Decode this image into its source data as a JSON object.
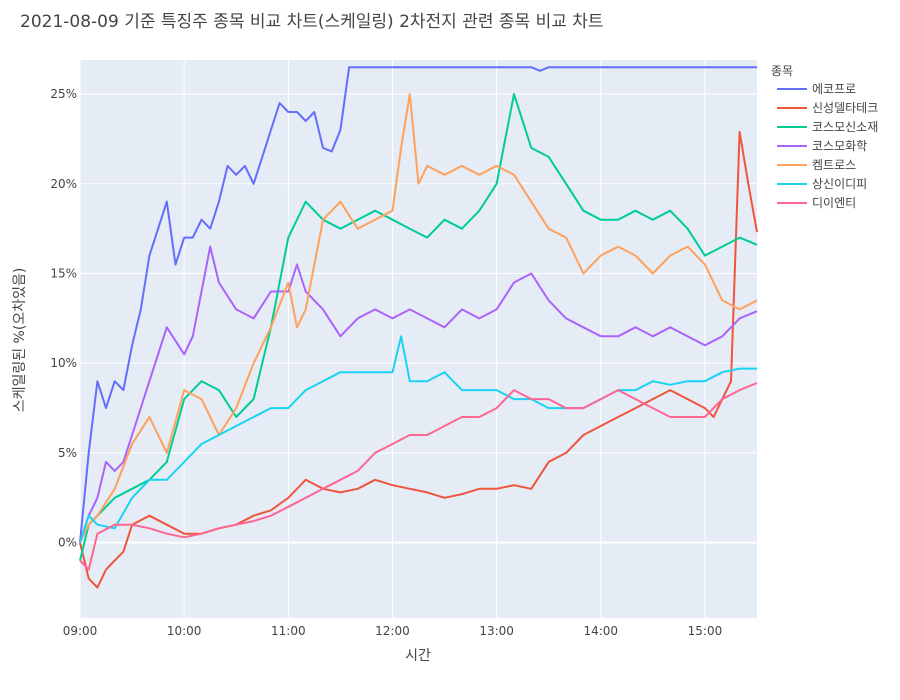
{
  "chart_data": {
    "type": "line",
    "title": "2021-08-09 기준 특징주 종목 비교 차트(스케일링) 2차전지 관련 종목 비교 차트",
    "xlabel": "시간",
    "ylabel": "스케일링된 %(오차있음)",
    "legend_title": "종목",
    "legend_position": "right",
    "grid": true,
    "xlim": [
      "09:00",
      "15:30"
    ],
    "ylim": [
      -4.2,
      26.9
    ],
    "x_ticks": [
      "09:00",
      "10:00",
      "11:00",
      "12:00",
      "13:00",
      "14:00",
      "15:00"
    ],
    "y_ticks": [
      0,
      5,
      10,
      15,
      20,
      25
    ],
    "y_tick_labels": [
      "0%",
      "5%",
      "10%",
      "15%",
      "20%",
      "25%"
    ],
    "series": [
      {
        "name": "에코프로",
        "color": "#636efa",
        "x": [
          "09:00",
          "09:05",
          "09:10",
          "09:15",
          "09:20",
          "09:25",
          "09:30",
          "09:35",
          "09:40",
          "09:45",
          "09:50",
          "09:55",
          "10:00",
          "10:05",
          "10:10",
          "10:15",
          "10:20",
          "10:25",
          "10:30",
          "10:35",
          "10:40",
          "10:45",
          "10:50",
          "10:55",
          "11:00",
          "11:05",
          "11:10",
          "11:15",
          "11:20",
          "11:25",
          "11:30",
          "11:35",
          "12:00",
          "13:00",
          "13:20",
          "13:25",
          "13:30",
          "14:00",
          "15:00",
          "15:30"
        ],
        "values": [
          0.0,
          5.0,
          9.0,
          7.5,
          9.0,
          8.5,
          11.0,
          13.0,
          16.0,
          17.5,
          19.0,
          15.5,
          17.0,
          17.0,
          18.0,
          17.5,
          19.0,
          21.0,
          20.5,
          21.0,
          20.0,
          21.5,
          23.0,
          24.5,
          24.0,
          24.0,
          23.5,
          24.0,
          22.0,
          21.8,
          23.0,
          26.5,
          26.5,
          26.5,
          26.5,
          26.3,
          26.5,
          26.5,
          26.5,
          26.5
        ]
      },
      {
        "name": "신성델타테크",
        "color": "#ef553b",
        "x": [
          "09:00",
          "09:05",
          "09:10",
          "09:15",
          "09:20",
          "09:25",
          "09:30",
          "09:40",
          "09:50",
          "10:00",
          "10:10",
          "10:20",
          "10:30",
          "10:40",
          "10:50",
          "11:00",
          "11:10",
          "11:20",
          "11:30",
          "11:40",
          "11:50",
          "12:00",
          "12:10",
          "12:20",
          "12:30",
          "12:40",
          "12:50",
          "13:00",
          "13:10",
          "13:20",
          "13:30",
          "13:40",
          "13:50",
          "14:00",
          "14:10",
          "14:20",
          "14:30",
          "14:40",
          "14:50",
          "15:00",
          "15:05",
          "15:10",
          "15:15",
          "15:20",
          "15:25",
          "15:30"
        ],
        "values": [
          0.0,
          -2.0,
          -2.5,
          -1.5,
          -1.0,
          -0.5,
          1.0,
          1.5,
          1.0,
          0.5,
          0.5,
          0.8,
          1.0,
          1.5,
          1.8,
          2.5,
          3.5,
          3.0,
          2.8,
          3.0,
          3.5,
          3.2,
          3.0,
          2.8,
          2.5,
          2.7,
          3.0,
          3.0,
          3.2,
          3.0,
          4.5,
          5.0,
          6.0,
          6.5,
          7.0,
          7.5,
          8.0,
          8.5,
          8.0,
          7.5,
          7.0,
          8.0,
          9.0,
          22.9,
          20.0,
          17.3
        ]
      },
      {
        "name": "코스모신소재",
        "color": "#00cc96",
        "x": [
          "09:00",
          "09:05",
          "09:10",
          "09:20",
          "09:30",
          "09:40",
          "09:50",
          "10:00",
          "10:10",
          "10:20",
          "10:30",
          "10:40",
          "10:50",
          "11:00",
          "11:10",
          "11:20",
          "11:30",
          "11:40",
          "11:50",
          "12:00",
          "12:10",
          "12:20",
          "12:30",
          "12:40",
          "12:50",
          "13:00",
          "13:10",
          "13:20",
          "13:30",
          "13:40",
          "13:50",
          "14:00",
          "14:10",
          "14:20",
          "14:30",
          "14:40",
          "14:50",
          "15:00",
          "15:10",
          "15:20",
          "15:30"
        ],
        "values": [
          -1.0,
          1.0,
          1.5,
          2.5,
          3.0,
          3.5,
          4.5,
          8.0,
          9.0,
          8.5,
          7.0,
          8.0,
          12.0,
          17.0,
          19.0,
          18.0,
          17.5,
          18.0,
          18.5,
          18.0,
          17.5,
          17.0,
          18.0,
          17.5,
          18.5,
          20.0,
          25.0,
          22.0,
          21.5,
          20.0,
          18.5,
          18.0,
          18.0,
          18.5,
          18.0,
          18.5,
          17.5,
          16.0,
          16.5,
          17.0,
          16.6
        ]
      },
      {
        "name": "코스모화학",
        "color": "#ab63fa",
        "x": [
          "09:00",
          "09:05",
          "09:10",
          "09:15",
          "09:20",
          "09:25",
          "09:30",
          "09:40",
          "09:50",
          "10:00",
          "10:05",
          "10:10",
          "10:15",
          "10:20",
          "10:30",
          "10:40",
          "10:50",
          "11:00",
          "11:05",
          "11:10",
          "11:20",
          "11:30",
          "11:40",
          "11:50",
          "12:00",
          "12:10",
          "12:20",
          "12:30",
          "12:40",
          "12:50",
          "13:00",
          "13:10",
          "13:20",
          "13:30",
          "13:40",
          "13:50",
          "14:00",
          "14:10",
          "14:20",
          "14:30",
          "14:40",
          "14:50",
          "15:00",
          "15:10",
          "15:20",
          "15:30"
        ],
        "values": [
          0.0,
          1.5,
          2.5,
          4.5,
          4.0,
          4.5,
          6.0,
          9.0,
          12.0,
          10.5,
          11.5,
          14.0,
          16.5,
          14.5,
          13.0,
          12.5,
          14.0,
          14.0,
          15.5,
          14.0,
          13.0,
          11.5,
          12.5,
          13.0,
          12.5,
          13.0,
          12.5,
          12.0,
          13.0,
          12.5,
          13.0,
          14.5,
          15.0,
          13.5,
          12.5,
          12.0,
          11.5,
          11.5,
          12.0,
          11.5,
          12.0,
          11.5,
          11.0,
          11.5,
          12.5,
          12.9
        ]
      },
      {
        "name": "켐트로스",
        "color": "#ffa15a",
        "x": [
          "09:00",
          "09:05",
          "09:10",
          "09:20",
          "09:30",
          "09:40",
          "09:50",
          "10:00",
          "10:10",
          "10:20",
          "10:30",
          "10:40",
          "10:50",
          "11:00",
          "11:05",
          "11:10",
          "11:20",
          "11:30",
          "11:40",
          "11:50",
          "12:00",
          "12:05",
          "12:10",
          "12:15",
          "12:20",
          "12:30",
          "12:40",
          "12:50",
          "13:00",
          "13:10",
          "13:20",
          "13:30",
          "13:40",
          "13:50",
          "14:00",
          "14:10",
          "14:20",
          "14:30",
          "14:40",
          "14:50",
          "15:00",
          "15:10",
          "15:20",
          "15:30"
        ],
        "values": [
          0.0,
          1.0,
          1.5,
          3.0,
          5.5,
          7.0,
          5.0,
          8.5,
          8.0,
          6.0,
          7.5,
          10.0,
          12.0,
          14.5,
          12.0,
          13.0,
          18.0,
          19.0,
          17.5,
          18.0,
          18.5,
          22.0,
          25.0,
          20.0,
          21.0,
          20.5,
          21.0,
          20.5,
          21.0,
          20.5,
          19.0,
          17.5,
          17.0,
          15.0,
          16.0,
          16.5,
          16.0,
          15.0,
          16.0,
          16.5,
          15.5,
          13.5,
          13.0,
          13.5
        ]
      },
      {
        "name": "상신이디피",
        "color": "#19d3f3",
        "x": [
          "09:00",
          "09:05",
          "09:10",
          "09:20",
          "09:30",
          "09:40",
          "09:50",
          "10:00",
          "10:10",
          "10:20",
          "10:30",
          "10:40",
          "10:50",
          "11:00",
          "11:10",
          "11:20",
          "11:30",
          "11:40",
          "11:50",
          "12:00",
          "12:05",
          "12:10",
          "12:20",
          "12:30",
          "12:40",
          "12:50",
          "13:00",
          "13:10",
          "13:20",
          "13:30",
          "13:40",
          "13:50",
          "14:00",
          "14:10",
          "14:20",
          "14:30",
          "14:40",
          "14:50",
          "15:00",
          "15:10",
          "15:20",
          "15:30"
        ],
        "values": [
          0.0,
          1.5,
          1.0,
          0.8,
          2.5,
          3.5,
          3.5,
          4.5,
          5.5,
          6.0,
          6.5,
          7.0,
          7.5,
          7.5,
          8.5,
          9.0,
          9.5,
          9.5,
          9.5,
          9.5,
          11.5,
          9.0,
          9.0,
          9.5,
          8.5,
          8.5,
          8.5,
          8.0,
          8.0,
          7.5,
          7.5,
          7.5,
          8.0,
          8.5,
          8.5,
          9.0,
          8.8,
          9.0,
          9.0,
          9.5,
          9.7,
          9.7
        ]
      },
      {
        "name": "디이엔티",
        "color": "#ff6692",
        "x": [
          "09:00",
          "09:05",
          "09:10",
          "09:20",
          "09:30",
          "09:40",
          "09:50",
          "10:00",
          "10:10",
          "10:20",
          "10:30",
          "10:40",
          "10:50",
          "11:00",
          "11:10",
          "11:20",
          "11:30",
          "11:40",
          "11:50",
          "12:00",
          "12:10",
          "12:20",
          "12:30",
          "12:40",
          "12:50",
          "13:00",
          "13:10",
          "13:20",
          "13:30",
          "13:40",
          "13:50",
          "14:00",
          "14:10",
          "14:20",
          "14:30",
          "14:40",
          "14:50",
          "15:00",
          "15:10",
          "15:20",
          "15:30"
        ],
        "values": [
          -1.0,
          -1.5,
          0.5,
          1.0,
          1.0,
          0.8,
          0.5,
          0.3,
          0.5,
          0.8,
          1.0,
          1.2,
          1.5,
          2.0,
          2.5,
          3.0,
          3.5,
          4.0,
          5.0,
          5.5,
          6.0,
          6.0,
          6.5,
          7.0,
          7.0,
          7.5,
          8.5,
          8.0,
          8.0,
          7.5,
          7.5,
          8.0,
          8.5,
          8.0,
          7.5,
          7.0,
          7.0,
          7.0,
          8.0,
          8.5,
          8.9
        ]
      }
    ]
  }
}
